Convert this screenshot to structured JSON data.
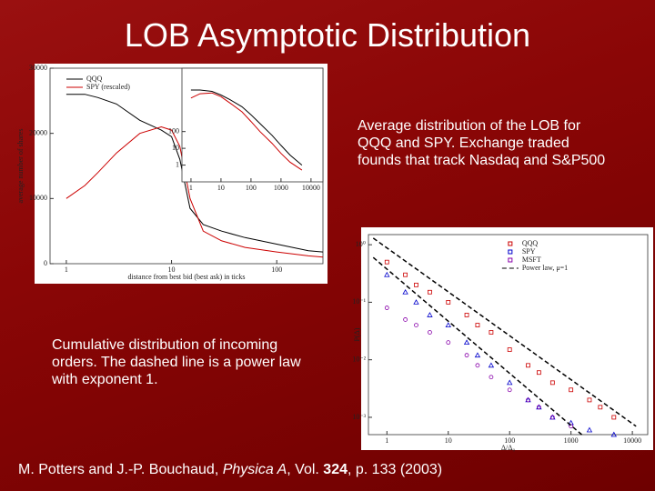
{
  "title": "LOB Asymptotic Distribution",
  "caption_right": [
    "Average distribution of the LOB for",
    "QQQ and SPY. Exchange traded",
    "founds that track Nasdaq and S&P500"
  ],
  "caption_left": [
    "Cumulative distribution of incoming",
    "orders. The dashed line is a power law",
    "with exponent 1."
  ],
  "citation": {
    "authors": "M. Potters and J.-P. Bouchaud, ",
    "journal": "Physica A",
    "vol_prefix": ", Vol. ",
    "volume": "324",
    "rest": ", p. 133 (2003)"
  },
  "chart_data": [
    {
      "type": "line",
      "xlabel": "distance from best bid (best ask) in ticks",
      "ylabel": "average number of shares",
      "xscale": "log",
      "xlim": [
        0.7,
        275
      ],
      "xticks": [
        1,
        10,
        100
      ],
      "ylim": [
        0,
        30000
      ],
      "yticks": [
        0,
        10000,
        20000,
        30000
      ],
      "legend": "upper left",
      "x": [
        1,
        1.5,
        2,
        3,
        5,
        8,
        10,
        12,
        15,
        20,
        30,
        50,
        100,
        200,
        275
      ],
      "series": [
        {
          "name": "QQQ",
          "color": "#000000",
          "values": [
            26000,
            26000,
            25500,
            24500,
            22000,
            20500,
            19500,
            16000,
            8500,
            6000,
            5000,
            4000,
            3000,
            2000,
            1800
          ]
        },
        {
          "name": "SPY (rescaled)",
          "color": "#cc0000",
          "values": [
            10000,
            12000,
            14000,
            17000,
            20000,
            21000,
            20500,
            18000,
            10000,
            5000,
            3500,
            2500,
            1800,
            1200,
            1000
          ]
        }
      ]
    },
    {
      "type": "line",
      "xscale": "log",
      "yscale": "log",
      "xlim": [
        0.5,
        25000
      ],
      "xticks": [
        1,
        10,
        100,
        1000,
        10000
      ],
      "ylim": [
        0.1,
        600000
      ],
      "yticks": [
        1,
        10,
        100
      ],
      "x": [
        1,
        2,
        5,
        10,
        20,
        50,
        100,
        200,
        500,
        1000,
        2000,
        5000
      ],
      "series": [
        {
          "color": "#000000",
          "values": [
            30000,
            30000,
            25000,
            15000,
            8000,
            3000,
            1000,
            300,
            60,
            15,
            4,
            1
          ]
        },
        {
          "color": "#cc0000",
          "values": [
            10000,
            18000,
            20000,
            12000,
            5000,
            1500,
            400,
            100,
            20,
            5,
            1.5,
            0.5
          ]
        }
      ]
    },
    {
      "type": "scatter",
      "xlabel": "Δ/Δ₀",
      "ylabel": "P(Δ)",
      "xscale": "log",
      "yscale": "log",
      "xlim": [
        0.5,
        17800
      ],
      "xticks": [
        1,
        10,
        100,
        1000,
        10000
      ],
      "ylim": [
        0.0005,
        1.5
      ],
      "yticks": [
        {
          "value": 1,
          "label": "10⁰"
        },
        {
          "value": 0.1,
          "label": "10⁻¹"
        },
        {
          "value": 0.01,
          "label": "10⁻²"
        },
        {
          "value": 0.001,
          "label": "10⁻³"
        }
      ],
      "legend": "upper right",
      "series": [
        {
          "name": "QQQ",
          "color": "#cc0000",
          "marker": "square",
          "x": [
            1,
            2,
            3,
            5,
            10,
            20,
            30,
            50,
            100,
            200,
            300,
            500,
            1000,
            2000,
            3000,
            5000
          ],
          "values": [
            0.5,
            0.3,
            0.2,
            0.15,
            0.1,
            0.06,
            0.04,
            0.03,
            0.015,
            0.008,
            0.006,
            0.004,
            0.003,
            0.002,
            0.0015,
            0.001
          ]
        },
        {
          "name": "SPY",
          "color": "#0000cc",
          "marker": "triangle",
          "x": [
            1,
            2,
            3,
            5,
            10,
            20,
            30,
            50,
            100,
            200,
            300,
            500,
            1000,
            2000,
            5000
          ],
          "values": [
            0.3,
            0.15,
            0.1,
            0.06,
            0.04,
            0.02,
            0.012,
            0.008,
            0.004,
            0.002,
            0.0015,
            0.001,
            0.0008,
            0.0006,
            0.0005
          ]
        },
        {
          "name": "MSFT",
          "color": "#8800aa",
          "marker": "circle",
          "x": [
            1,
            2,
            3,
            5,
            10,
            20,
            30,
            50,
            100,
            200,
            300,
            500,
            1000
          ],
          "values": [
            0.08,
            0.05,
            0.04,
            0.03,
            0.02,
            0.012,
            0.008,
            0.005,
            0.003,
            0.002,
            0.0015,
            0.001,
            0.0007
          ]
        },
        {
          "name": "Power law, μ=1",
          "color": "#000000",
          "marker": "dashed",
          "x": [
            0.6,
            11500,
            null,
            0.6,
            1500
          ],
          "values": [
            1.3,
            0.0007,
            null,
            0.6,
            0.0005
          ]
        }
      ]
    }
  ]
}
